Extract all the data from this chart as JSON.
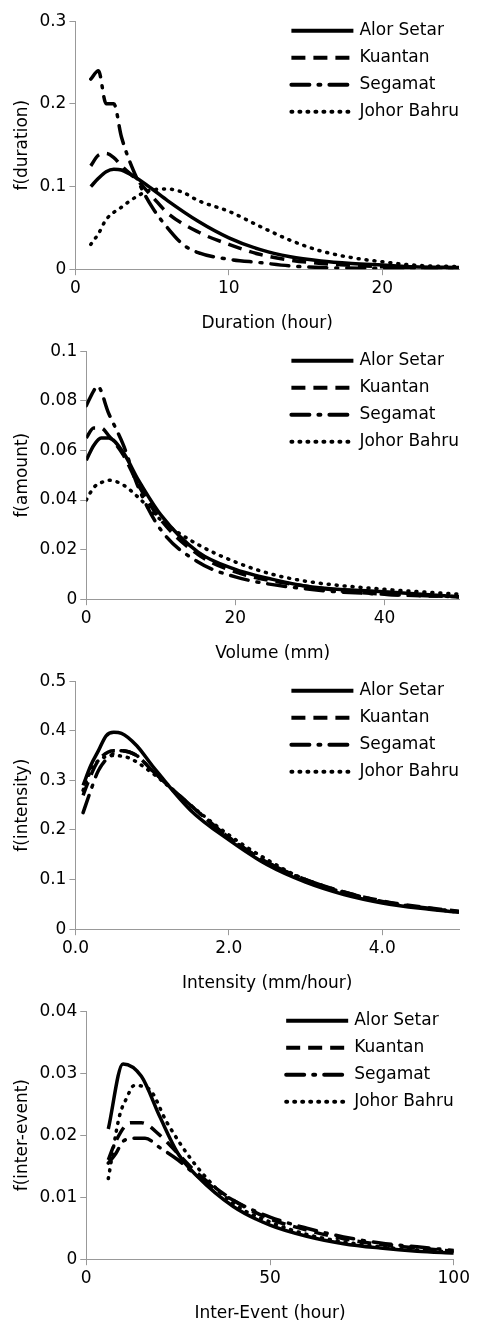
{
  "chart_data": [
    {
      "type": "line",
      "xlabel": "Duration (hour)",
      "ylabel": "f(duration)",
      "xlim": [
        0,
        25
      ],
      "xticks": [
        0,
        10,
        20
      ],
      "ylim": [
        0,
        0.3
      ],
      "yticks": [
        0,
        0.1,
        0.2,
        0.3
      ],
      "legend": "top right",
      "series": [
        {
          "name": "Alor Setar",
          "color": "#000000",
          "line_style": "solid",
          "x": [
            1,
            1.5,
            2,
            2.5,
            3,
            4,
            5,
            6,
            8,
            10,
            12,
            14,
            16,
            18,
            20,
            22,
            25
          ],
          "values": [
            0.1,
            0.11,
            0.118,
            0.121,
            0.12,
            0.11,
            0.097,
            0.083,
            0.058,
            0.038,
            0.024,
            0.015,
            0.01,
            0.007,
            0.005,
            0.003,
            0.002
          ]
        },
        {
          "name": "Kuantan",
          "color": "#000000",
          "line_style": "dashed",
          "x": [
            1,
            1.5,
            2,
            2.5,
            3,
            4,
            5,
            6,
            8,
            10,
            12,
            14,
            16,
            20,
            25
          ],
          "values": [
            0.125,
            0.138,
            0.14,
            0.135,
            0.125,
            0.108,
            0.088,
            0.068,
            0.045,
            0.03,
            0.018,
            0.011,
            0.007,
            0.003,
            0.001
          ]
        },
        {
          "name": "Segamat",
          "color": "#000000",
          "line_style": "dashdot",
          "x": [
            1,
            1.5,
            2,
            2.5,
            3,
            4,
            5,
            6,
            7,
            8,
            10,
            12,
            14,
            16,
            20,
            25
          ],
          "values": [
            0.23,
            0.24,
            0.2,
            0.2,
            0.16,
            0.11,
            0.075,
            0.05,
            0.03,
            0.02,
            0.012,
            0.008,
            0.004,
            0.002,
            0.001,
            0
          ]
        },
        {
          "name": "Johor Bahru",
          "color": "#000000",
          "line_style": "dotted",
          "x": [
            1,
            1.5,
            2,
            3,
            4,
            5,
            6,
            7,
            8,
            10,
            12,
            14,
            16,
            18,
            20,
            22,
            25
          ],
          "values": [
            0.03,
            0.043,
            0.06,
            0.075,
            0.088,
            0.096,
            0.097,
            0.093,
            0.083,
            0.07,
            0.052,
            0.035,
            0.022,
            0.014,
            0.009,
            0.005,
            0.003
          ]
        }
      ]
    },
    {
      "type": "line",
      "xlabel": "Volume (mm)",
      "ylabel": "f(amount)",
      "xlim": [
        0,
        50
      ],
      "xticks": [
        0,
        20,
        40
      ],
      "ylim": [
        0,
        0.1
      ],
      "yticks": [
        0,
        0.02,
        0.04,
        0.06,
        0.08,
        0.1
      ],
      "legend": "top right",
      "series": [
        {
          "name": "Alor Setar",
          "color": "#000000",
          "line_style": "solid",
          "x": [
            0,
            1,
            2,
            3,
            5,
            7,
            10,
            15,
            20,
            25,
            30,
            40,
            50
          ],
          "values": [
            0.056,
            0.062,
            0.065,
            0.065,
            0.059,
            0.048,
            0.034,
            0.019,
            0.012,
            0.008,
            0.005,
            0.003,
            0.001
          ]
        },
        {
          "name": "Kuantan",
          "color": "#000000",
          "line_style": "dashed",
          "x": [
            0,
            1,
            2,
            3,
            5,
            7,
            10,
            15,
            20,
            30,
            40,
            50
          ],
          "values": [
            0.065,
            0.069,
            0.069,
            0.066,
            0.058,
            0.046,
            0.032,
            0.018,
            0.011,
            0.005,
            0.002,
            0.001
          ]
        },
        {
          "name": "Segamat",
          "color": "#000000",
          "line_style": "dashdot",
          "x": [
            0,
            1,
            1.5,
            3,
            5,
            7,
            10,
            15,
            20,
            30,
            40,
            50
          ],
          "values": [
            0.078,
            0.084,
            0.086,
            0.075,
            0.062,
            0.045,
            0.028,
            0.015,
            0.009,
            0.004,
            0.002,
            0.001
          ]
        },
        {
          "name": "Johor Bahru",
          "color": "#000000",
          "line_style": "dotted",
          "x": [
            0,
            1,
            2,
            3,
            5,
            7,
            10,
            15,
            20,
            25,
            30,
            40,
            50
          ],
          "values": [
            0.04,
            0.045,
            0.047,
            0.048,
            0.046,
            0.041,
            0.032,
            0.022,
            0.015,
            0.01,
            0.007,
            0.004,
            0.002
          ]
        }
      ]
    },
    {
      "type": "line",
      "xlabel": "Intensity (mm/hour)",
      "ylabel": "f(intensity)",
      "xlim": [
        0,
        5
      ],
      "xticks": [
        {
          "value": 0,
          "label": "0.0"
        },
        {
          "value": 2,
          "label": "2.0"
        },
        {
          "value": 4,
          "label": "4.0"
        }
      ],
      "ylim": [
        0,
        0.5
      ],
      "yticks": [
        0,
        0.1,
        0.2,
        0.3,
        0.4,
        0.5
      ],
      "legend": "top right",
      "series": [
        {
          "name": "Alor Setar",
          "color": "#000000",
          "line_style": "solid",
          "x": [
            0.1,
            0.2,
            0.3,
            0.4,
            0.5,
            0.6,
            0.8,
            1,
            1.5,
            2,
            2.5,
            3,
            3.5,
            4,
            4.5,
            5
          ],
          "values": [
            0.29,
            0.33,
            0.36,
            0.39,
            0.397,
            0.395,
            0.37,
            0.33,
            0.24,
            0.18,
            0.13,
            0.095,
            0.07,
            0.053,
            0.042,
            0.034
          ]
        },
        {
          "name": "Kuantan",
          "color": "#000000",
          "line_style": "dashed",
          "x": [
            0.1,
            0.2,
            0.3,
            0.5,
            0.6,
            0.8,
            1,
            1.5,
            2,
            2.5,
            3,
            3.5,
            4,
            4.5,
            5
          ],
          "values": [
            0.27,
            0.31,
            0.34,
            0.36,
            0.36,
            0.35,
            0.32,
            0.25,
            0.185,
            0.135,
            0.1,
            0.075,
            0.057,
            0.045,
            0.036
          ]
        },
        {
          "name": "Segamat",
          "color": "#000000",
          "line_style": "dashdot",
          "x": [
            0.1,
            0.2,
            0.3,
            0.5,
            0.6,
            0.8,
            1,
            1.5,
            2,
            2.5,
            3,
            4,
            5
          ],
          "values": [
            0.235,
            0.28,
            0.32,
            0.355,
            0.36,
            0.35,
            0.32,
            0.25,
            0.185,
            0.135,
            0.1,
            0.056,
            0.035
          ]
        },
        {
          "name": "Johor Bahru",
          "color": "#000000",
          "line_style": "dotted",
          "x": [
            0.1,
            0.2,
            0.3,
            0.5,
            0.7,
            1,
            1.5,
            2,
            2.5,
            3,
            4,
            5
          ],
          "values": [
            0.28,
            0.32,
            0.34,
            0.35,
            0.345,
            0.315,
            0.25,
            0.19,
            0.14,
            0.1,
            0.055,
            0.034
          ]
        }
      ]
    },
    {
      "type": "line",
      "xlabel": "Inter-Event (hour)",
      "ylabel": "f(inter-event)",
      "xlim": [
        0,
        100
      ],
      "xticks": [
        0,
        50,
        100
      ],
      "ylim": [
        0,
        0.04
      ],
      "yticks": [
        0,
        0.01,
        0.02,
        0.03,
        0.04
      ],
      "legend": "top right",
      "series": [
        {
          "name": "Alor Setar",
          "color": "#000000",
          "line_style": "solid",
          "x": [
            6,
            10,
            15,
            20,
            25,
            30,
            40,
            50,
            60,
            70,
            80,
            90,
            100
          ],
          "values": [
            0.021,
            0.0315,
            0.0295,
            0.023,
            0.017,
            0.0135,
            0.0085,
            0.0055,
            0.0037,
            0.0025,
            0.0018,
            0.0013,
            0.001
          ]
        },
        {
          "name": "Kuantan",
          "color": "#000000",
          "line_style": "dashed",
          "x": [
            6,
            8,
            12,
            15,
            20,
            25,
            30,
            40,
            50,
            60,
            70,
            80,
            90,
            100
          ],
          "values": [
            0.016,
            0.019,
            0.022,
            0.022,
            0.02,
            0.017,
            0.014,
            0.0095,
            0.0065,
            0.0047,
            0.0033,
            0.0024,
            0.0018,
            0.0013
          ]
        },
        {
          "name": "Segamat",
          "color": "#000000",
          "line_style": "dashdot",
          "x": [
            6,
            8,
            10,
            13,
            16,
            20,
            25,
            30,
            40,
            50,
            60,
            70,
            80,
            90,
            100
          ],
          "values": [
            0.0155,
            0.017,
            0.019,
            0.0195,
            0.0195,
            0.018,
            0.016,
            0.0135,
            0.0095,
            0.0068,
            0.005,
            0.0036,
            0.0026,
            0.002,
            0.0014
          ]
        },
        {
          "name": "Johor Bahru",
          "color": "#000000",
          "line_style": "dotted",
          "x": [
            6,
            9,
            11,
            13,
            17,
            22,
            30,
            40,
            50,
            60,
            70,
            80,
            90,
            100
          ],
          "values": [
            0.013,
            0.023,
            0.026,
            0.028,
            0.0275,
            0.022,
            0.015,
            0.009,
            0.006,
            0.004,
            0.0028,
            0.002,
            0.0015,
            0.0012
          ]
        }
      ]
    }
  ]
}
